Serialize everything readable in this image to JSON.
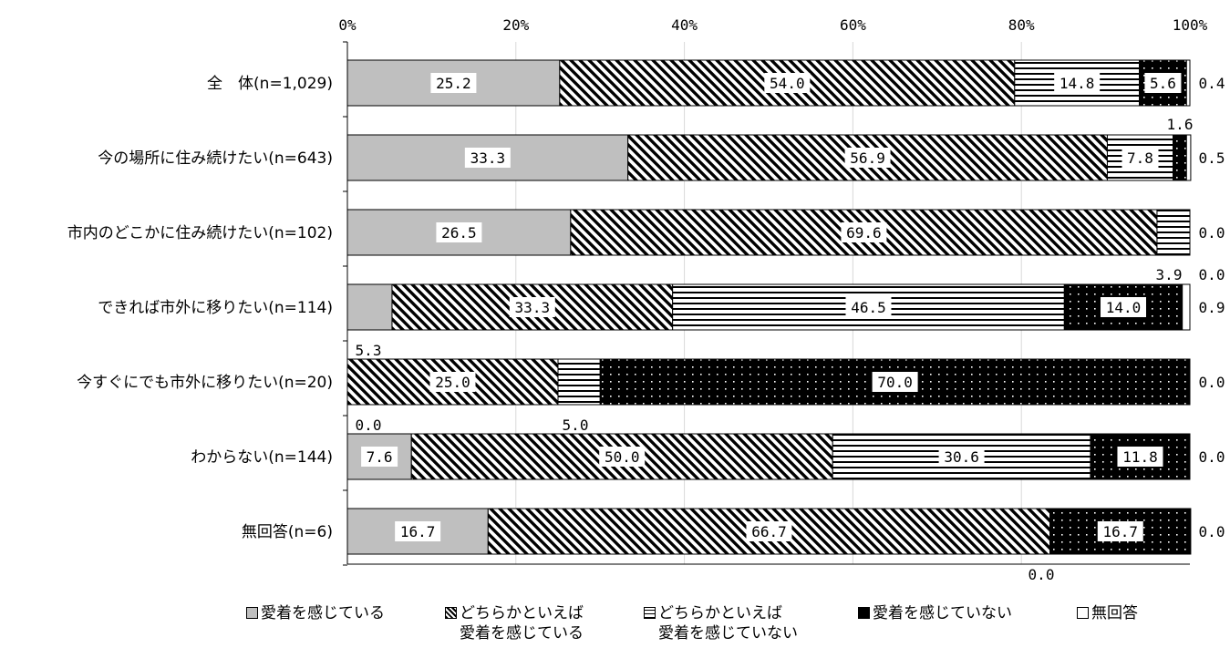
{
  "chart_data": {
    "type": "bar",
    "orientation": "horizontal",
    "stacked": "percent",
    "categories": [
      "全　体(n=1,029)",
      "今の場所に住み続けたい(n=643)",
      "市内のどこかに住み続けたい(n=102)",
      "できれば市外に移りたい(n=114)",
      "今すぐにでも市外に移りたい(n=20)",
      "わからない(n=144)",
      "無回答(n=6)"
    ],
    "series": [
      {
        "name": "愛着を感じている",
        "color": "#bfbfbf",
        "pattern": "solid-gray",
        "values": [
          25.2,
          33.3,
          26.5,
          5.3,
          0.0,
          7.6,
          16.7
        ],
        "labels": [
          "25.2",
          "33.3",
          "26.5",
          "5.3",
          "0.0",
          "7.6",
          "16.7"
        ]
      },
      {
        "name": "どちらかといえば愛着を感じている",
        "color": "#000000",
        "pattern": "diagonal-stripes",
        "values": [
          54.0,
          56.9,
          69.6,
          33.3,
          25.0,
          50.0,
          66.7
        ],
        "labels": [
          "54.0",
          "56.9",
          "69.6",
          "33.3",
          "25.0",
          "50.0",
          "66.7"
        ]
      },
      {
        "name": "どちらかといえば愛着を感じていない",
        "color": "#000000",
        "pattern": "horizontal-lines",
        "values": [
          14.8,
          7.8,
          3.9,
          46.5,
          5.0,
          30.6,
          0.0
        ],
        "labels": [
          "14.8",
          "7.8",
          "3.9",
          "46.5",
          "5.0",
          "30.6",
          "0.0"
        ]
      },
      {
        "name": "愛着を感じていない",
        "color": "#000000",
        "pattern": "black-dotted",
        "values": [
          5.6,
          1.6,
          0.0,
          14.0,
          70.0,
          11.8,
          16.7
        ],
        "labels": [
          "5.6",
          "1.6",
          "0.0",
          "14.0",
          "70.0",
          "11.8",
          "16.7"
        ]
      },
      {
        "name": "無回答",
        "color": "#ffffff",
        "pattern": "white",
        "values": [
          0.4,
          0.5,
          0.0,
          0.9,
          0.0,
          0.0,
          0.0
        ],
        "labels": [
          "0.4",
          "0.5",
          "0.0",
          "0.9",
          "0.0",
          "0.0",
          "0.0"
        ]
      }
    ],
    "xlim": [
      0,
      100
    ],
    "x_ticks": [
      "0%",
      "20%",
      "40%",
      "60%",
      "80%",
      "100%"
    ],
    "grid": true,
    "legend_position": "bottom",
    "legend": [
      {
        "line1": "愛着を感じている",
        "line2": "",
        "symbol": "solid-gray"
      },
      {
        "line1": "どちらかといえば",
        "line2": "愛着を感じている",
        "symbol": "diagonal-stripes"
      },
      {
        "line1": "どちらかといえば",
        "line2": "愛着を感じていない",
        "symbol": "horizontal-lines"
      },
      {
        "line1": "愛着を感じていない",
        "line2": "",
        "symbol": "black-dotted"
      },
      {
        "line1": "無回答",
        "line2": "",
        "symbol": "white"
      }
    ]
  }
}
